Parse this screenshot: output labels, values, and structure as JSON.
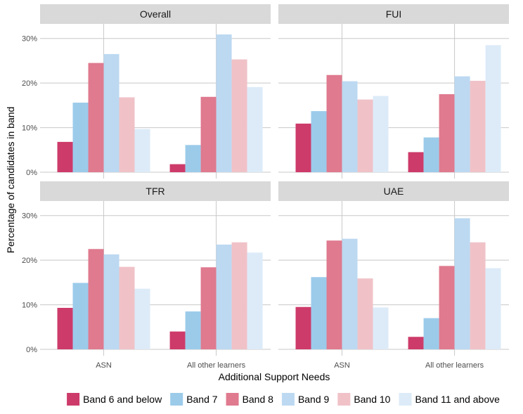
{
  "chart_data": {
    "type": "bar",
    "xlabel": "Additional Support Needs",
    "ylabel": "Percentage of candidates in band",
    "ylim": [
      0,
      32
    ],
    "yticks": [
      0,
      10,
      20,
      30
    ],
    "ytick_labels": [
      "0%",
      "10%",
      "20%",
      "30%"
    ],
    "categories": [
      "ASN",
      "All other learners"
    ],
    "legend_position": "bottom",
    "bands": [
      {
        "name": "Band 6 and below",
        "color": "#cd3b6a"
      },
      {
        "name": "Band 7",
        "color": "#9ccbea"
      },
      {
        "name": "Band 8",
        "color": "#df7a8f"
      },
      {
        "name": "Band 9",
        "color": "#bcd9f1"
      },
      {
        "name": "Band 10",
        "color": "#f0c2c8"
      },
      {
        "name": "Band 11 and above",
        "color": "#ddebf8"
      }
    ],
    "panels": [
      {
        "title": "Overall",
        "values": [
          [
            6.8,
            15.6,
            24.5,
            26.5,
            16.8,
            9.7
          ],
          [
            1.8,
            6.1,
            16.9,
            30.9,
            25.3,
            19.1
          ]
        ]
      },
      {
        "title": "FUI",
        "values": [
          [
            10.9,
            13.7,
            21.8,
            20.4,
            16.3,
            17.1
          ],
          [
            4.5,
            7.8,
            17.5,
            21.5,
            20.5,
            28.5
          ]
        ]
      },
      {
        "title": "TFR",
        "values": [
          [
            9.3,
            14.9,
            22.5,
            21.3,
            18.5,
            13.6
          ],
          [
            4.0,
            8.5,
            18.4,
            23.5,
            24.0,
            21.7
          ]
        ]
      },
      {
        "title": "UAE",
        "values": [
          [
            9.5,
            16.2,
            24.4,
            24.8,
            15.9,
            9.4
          ],
          [
            2.8,
            7.0,
            18.7,
            29.4,
            24.0,
            18.2
          ]
        ]
      }
    ]
  }
}
